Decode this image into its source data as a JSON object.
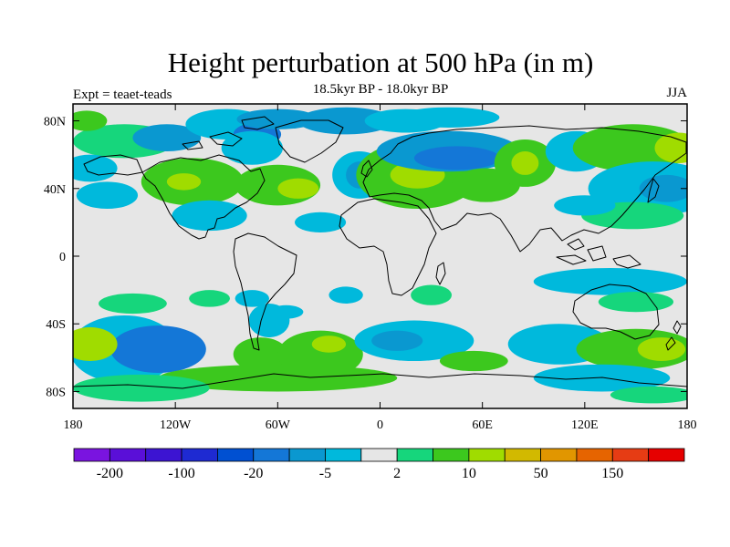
{
  "chart_data": {
    "type": "heatmap",
    "title": "Height perturbation at 500 hPa (in m)",
    "subtitle": "18.5kyr BP - 18.0kyr BP",
    "left_label": "Expt = teaet-teads",
    "right_label": "JJA",
    "projection": "cylindrical equidistant, 180W-180E, 90S-90N, coastlines",
    "x_ticks": [
      {
        "lon": -180,
        "label": "180"
      },
      {
        "lon": -120,
        "label": "120W"
      },
      {
        "lon": -60,
        "label": "60W"
      },
      {
        "lon": 0,
        "label": "0"
      },
      {
        "lon": 60,
        "label": "60E"
      },
      {
        "lon": 120,
        "label": "120E"
      },
      {
        "lon": 180,
        "label": "180"
      }
    ],
    "y_ticks": [
      {
        "lat": 80,
        "label": "80N"
      },
      {
        "lat": 40,
        "label": "40N"
      },
      {
        "lat": 0,
        "label": "0"
      },
      {
        "lat": -40,
        "label": "40S"
      },
      {
        "lat": -80,
        "label": "80S"
      }
    ],
    "xlim": [
      -180,
      180
    ],
    "ylim": [
      -90,
      90
    ],
    "colorbar": {
      "colors": [
        "#7a14e0",
        "#5a0fd8",
        "#3c14d2",
        "#1e2ad2",
        "#0050d2",
        "#1477d7",
        "#0a98d0",
        "#00b9dc",
        "#e6e6e6",
        "#16d67c",
        "#3cc81e",
        "#a0dc00",
        "#d2b900",
        "#e19600",
        "#e66400",
        "#e63c14",
        "#e60000"
      ],
      "labels": [
        {
          "boundary": 1,
          "text": "-200"
        },
        {
          "boundary": 3,
          "text": "-100"
        },
        {
          "boundary": 5,
          "text": "-20"
        },
        {
          "boundary": 7,
          "text": "-5"
        },
        {
          "boundary": 9,
          "text": "2"
        },
        {
          "boundary": 11,
          "text": "10"
        },
        {
          "boundary": 13,
          "text": "50"
        },
        {
          "boundary": 15,
          "text": "150"
        }
      ]
    },
    "background_level": 8,
    "anomalies": [
      {
        "lon": -150,
        "lat": 68,
        "rx": 30,
        "ry": 10,
        "level": 9
      },
      {
        "lon": -125,
        "lat": 70,
        "rx": 20,
        "ry": 8,
        "level": 6
      },
      {
        "lon": -90,
        "lat": 78,
        "rx": 24,
        "ry": 9,
        "level": 7
      },
      {
        "lon": -72,
        "lat": 72,
        "rx": 14,
        "ry": 7,
        "level": 5
      },
      {
        "lon": -60,
        "lat": 81,
        "rx": 24,
        "ry": 6,
        "level": 6
      },
      {
        "lon": -20,
        "lat": 80,
        "rx": 28,
        "ry": 8,
        "level": 6
      },
      {
        "lon": 15,
        "lat": 80,
        "rx": 24,
        "ry": 7,
        "level": 7
      },
      {
        "lon": 40,
        "lat": 82,
        "rx": 30,
        "ry": 6,
        "level": 7
      },
      {
        "lon": -170,
        "lat": 52,
        "rx": 16,
        "ry": 8,
        "level": 7
      },
      {
        "lon": -172,
        "lat": 80,
        "rx": 12,
        "ry": 6,
        "level": 10
      },
      {
        "lon": -110,
        "lat": 44,
        "rx": 30,
        "ry": 14,
        "level": 10
      },
      {
        "lon": -115,
        "lat": 44,
        "rx": 10,
        "ry": 5,
        "level": 11
      },
      {
        "lon": -60,
        "lat": 42,
        "rx": 25,
        "ry": 12,
        "level": 10
      },
      {
        "lon": -48,
        "lat": 40,
        "rx": 12,
        "ry": 6,
        "level": 11
      },
      {
        "lon": -12,
        "lat": 48,
        "rx": 16,
        "ry": 14,
        "level": 7
      },
      {
        "lon": -12,
        "lat": 48,
        "rx": 8,
        "ry": 8,
        "level": 6
      },
      {
        "lon": -75,
        "lat": 64,
        "rx": 18,
        "ry": 10,
        "level": 7
      },
      {
        "lon": 22,
        "lat": 48,
        "rx": 36,
        "ry": 20,
        "level": 10
      },
      {
        "lon": 22,
        "lat": 48,
        "rx": 16,
        "ry": 8,
        "level": 11
      },
      {
        "lon": 40,
        "lat": 62,
        "rx": 42,
        "ry": 12,
        "level": 6
      },
      {
        "lon": 45,
        "lat": 58,
        "rx": 25,
        "ry": 7,
        "level": 5
      },
      {
        "lon": 62,
        "lat": 42,
        "rx": 20,
        "ry": 10,
        "level": 10
      },
      {
        "lon": 85,
        "lat": 55,
        "rx": 18,
        "ry": 14,
        "level": 10
      },
      {
        "lon": 85,
        "lat": 55,
        "rx": 8,
        "ry": 7,
        "level": 11
      },
      {
        "lon": 115,
        "lat": 62,
        "rx": 18,
        "ry": 12,
        "level": 7
      },
      {
        "lon": 148,
        "lat": 64,
        "rx": 35,
        "ry": 14,
        "level": 10
      },
      {
        "lon": 175,
        "lat": 64,
        "rx": 14,
        "ry": 9,
        "level": 11
      },
      {
        "lon": 160,
        "lat": 40,
        "rx": 38,
        "ry": 16,
        "level": 7
      },
      {
        "lon": 168,
        "lat": 40,
        "rx": 16,
        "ry": 8,
        "level": 6
      },
      {
        "lon": 148,
        "lat": 24,
        "rx": 30,
        "ry": 8,
        "level": 9
      },
      {
        "lon": 120,
        "lat": 30,
        "rx": 18,
        "ry": 6,
        "level": 7
      },
      {
        "lon": -160,
        "lat": 36,
        "rx": 18,
        "ry": 8,
        "level": 7
      },
      {
        "lon": -100,
        "lat": 24,
        "rx": 22,
        "ry": 9,
        "level": 7
      },
      {
        "lon": -35,
        "lat": 20,
        "rx": 15,
        "ry": 6,
        "level": 7
      },
      {
        "lon": -145,
        "lat": -28,
        "rx": 20,
        "ry": 6,
        "level": 9
      },
      {
        "lon": -100,
        "lat": -25,
        "rx": 12,
        "ry": 5,
        "level": 9
      },
      {
        "lon": -75,
        "lat": -25,
        "rx": 10,
        "ry": 5,
        "level": 7
      },
      {
        "lon": -55,
        "lat": -33,
        "rx": 10,
        "ry": 4,
        "level": 7
      },
      {
        "lon": -20,
        "lat": -23,
        "rx": 10,
        "ry": 5,
        "level": 7
      },
      {
        "lon": 30,
        "lat": -23,
        "rx": 12,
        "ry": 6,
        "level": 9
      },
      {
        "lon": 135,
        "lat": -15,
        "rx": 45,
        "ry": 8,
        "level": 7
      },
      {
        "lon": 150,
        "lat": -27,
        "rx": 22,
        "ry": 6,
        "level": 9
      },
      {
        "lon": -150,
        "lat": -55,
        "rx": 32,
        "ry": 20,
        "level": 7
      },
      {
        "lon": -130,
        "lat": -55,
        "rx": 28,
        "ry": 14,
        "level": 5
      },
      {
        "lon": -170,
        "lat": -52,
        "rx": 16,
        "ry": 10,
        "level": 11
      },
      {
        "lon": -65,
        "lat": -38,
        "rx": 12,
        "ry": 10,
        "level": 7
      },
      {
        "lon": -70,
        "lat": -58,
        "rx": 16,
        "ry": 10,
        "level": 10
      },
      {
        "lon": -35,
        "lat": -58,
        "rx": 25,
        "ry": 14,
        "level": 10
      },
      {
        "lon": -30,
        "lat": -52,
        "rx": 10,
        "ry": 5,
        "level": 11
      },
      {
        "lon": 20,
        "lat": -50,
        "rx": 35,
        "ry": 12,
        "level": 7
      },
      {
        "lon": 10,
        "lat": -50,
        "rx": 15,
        "ry": 6,
        "level": 6
      },
      {
        "lon": -60,
        "lat": -72,
        "rx": 70,
        "ry": 8,
        "level": 10
      },
      {
        "lon": -140,
        "lat": -78,
        "rx": 40,
        "ry": 8,
        "level": 9
      },
      {
        "lon": 55,
        "lat": -62,
        "rx": 20,
        "ry": 6,
        "level": 10
      },
      {
        "lon": 105,
        "lat": -52,
        "rx": 30,
        "ry": 12,
        "level": 7
      },
      {
        "lon": 150,
        "lat": -55,
        "rx": 35,
        "ry": 12,
        "level": 10
      },
      {
        "lon": 165,
        "lat": -55,
        "rx": 14,
        "ry": 7,
        "level": 11
      },
      {
        "lon": 130,
        "lat": -72,
        "rx": 40,
        "ry": 8,
        "level": 7
      },
      {
        "lon": 160,
        "lat": -82,
        "rx": 25,
        "ry": 5,
        "level": 9
      }
    ]
  }
}
